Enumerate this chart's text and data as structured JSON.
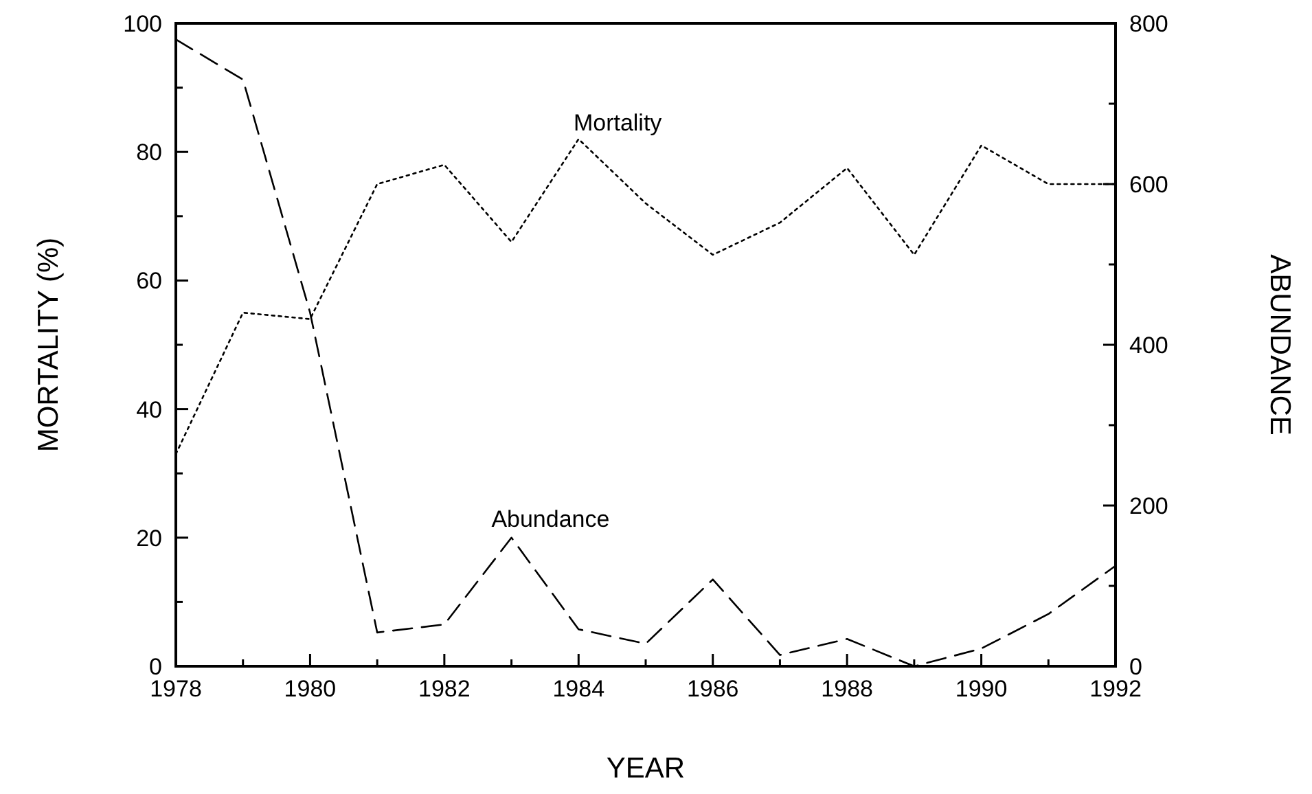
{
  "chart_data": {
    "type": "line",
    "xlabel": "YEAR",
    "ylabel": "MORTALITY (%)",
    "y2label": "ABUNDANCE",
    "x": [
      1978,
      1979,
      1980,
      1981,
      1982,
      1983,
      1984,
      1985,
      1986,
      1987,
      1988,
      1989,
      1990,
      1991,
      1992
    ],
    "series": [
      {
        "name": "Mortality",
        "color": "#000000",
        "line_style": "dotted",
        "values": [
          33,
          55,
          54,
          75,
          78,
          66,
          82,
          72,
          64,
          69,
          77.5,
          64,
          81,
          75,
          75
        ]
      },
      {
        "name": "Abundance",
        "color": "#000000",
        "line_style": "dashed",
        "axis": "y2",
        "values": [
          780,
          730,
          440,
          42,
          52,
          160,
          46,
          28,
          108,
          14,
          34,
          0,
          22,
          65,
          125
        ]
      }
    ],
    "xlim": [
      1978,
      1992
    ],
    "xticks": [
      1978,
      {
        "value": 1979,
        "label": null
      },
      1980,
      {
        "value": 1981,
        "label": null
      },
      1982,
      {
        "value": 1983,
        "label": null
      },
      1984,
      {
        "value": 1985,
        "label": null
      },
      1986,
      {
        "value": 1987,
        "label": null
      },
      1988,
      {
        "value": 1989,
        "label": null
      },
      1990,
      {
        "value": 1991,
        "label": null
      },
      1992
    ],
    "ylim": [
      0,
      100
    ],
    "yticks": [
      0,
      {
        "value": 10,
        "label": null
      },
      20,
      {
        "value": 30,
        "label": null
      },
      40,
      {
        "value": 50,
        "label": null
      },
      60,
      {
        "value": 70,
        "label": null
      },
      80,
      {
        "value": 90,
        "label": null
      },
      100
    ],
    "y2lim": [
      0,
      800
    ],
    "y2ticks": [
      0,
      {
        "value": 100,
        "label": null
      },
      200,
      {
        "value": 300,
        "label": null
      },
      400,
      {
        "value": 500,
        "label": null
      },
      600,
      {
        "value": 700,
        "label": null
      },
      800
    ],
    "grid": false,
    "marker": "none"
  }
}
